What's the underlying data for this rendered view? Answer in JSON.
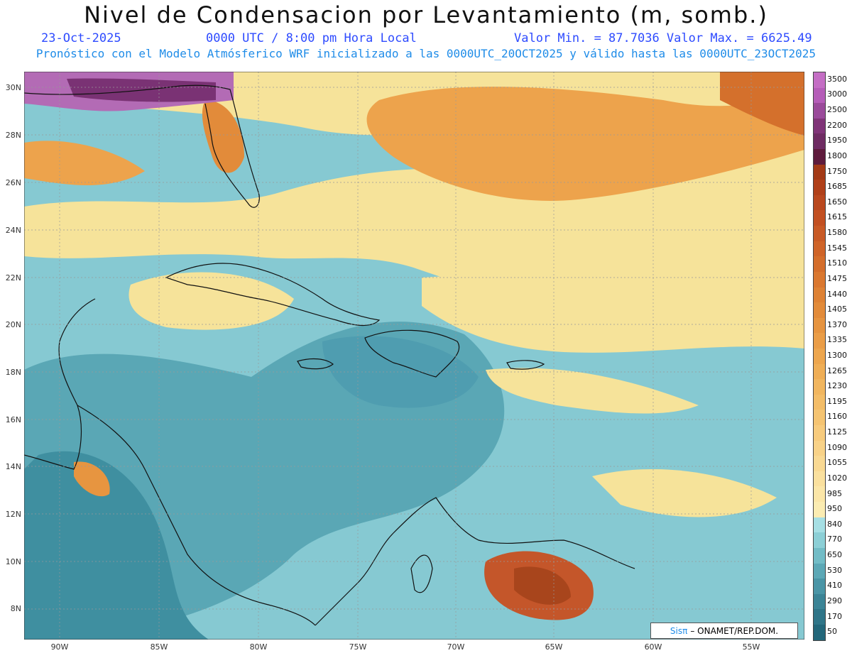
{
  "title": "Nivel de Condensacion por Levantamiento (m, somb.)",
  "date": "23-Oct-2025",
  "time": "0000 UTC / 8:00 pm Hora Local",
  "minmax": "Valor Min. = 87.7036  Valor Max. = 6625.49",
  "subtitle": "Pronóstico con el Modelo Atmósferico WRF inicializado a las 0000UTC_20OCT2025 y válido hasta las  0000UTC_23OCT2025",
  "credit": {
    "logo": "Sisπ",
    "text": "– ONAMET/REP.DOM."
  },
  "lat_labels": [
    "30N",
    "28N",
    "26N",
    "24N",
    "22N",
    "20N",
    "18N",
    "16N",
    "14N",
    "12N",
    "10N",
    "8N"
  ],
  "lon_labels": [
    "90W",
    "85W",
    "80W",
    "75W",
    "70W",
    "65W",
    "60W",
    "55W"
  ],
  "colorbar": {
    "labels": [
      "3500",
      "3000",
      "2500",
      "2200",
      "1950",
      "1800",
      "1750",
      "1685",
      "1650",
      "1615",
      "1580",
      "1545",
      "1510",
      "1475",
      "1440",
      "1405",
      "1370",
      "1335",
      "1300",
      "1265",
      "1230",
      "1195",
      "1160",
      "1125",
      "1090",
      "1055",
      "1020",
      "985",
      "950",
      "840",
      "770",
      "650",
      "530",
      "410",
      "290",
      "170",
      "50"
    ],
    "colors": [
      "#c46ec4",
      "#b55db8",
      "#9a4a9a",
      "#803478",
      "#6e2b62",
      "#5e1b3c",
      "#a33a16",
      "#b04019",
      "#b9481e",
      "#c25022",
      "#c85a26",
      "#cf6429",
      "#d46e2c",
      "#da7830",
      "#de8235",
      "#e28b3a",
      "#e69440",
      "#ea9d47",
      "#eda64e",
      "#efae56",
      "#f1b65f",
      "#f3bd68",
      "#f5c472",
      "#f7cb7d",
      "#f8d288",
      "#f9d993",
      "#fae09e",
      "#fbe6a8",
      "#fbecb2",
      "#a6dfe4",
      "#8ccfd6",
      "#72bcc6",
      "#5ca8b6",
      "#4a95a6",
      "#3b8496",
      "#2f7588",
      "#23677a"
    ]
  },
  "map_colors": {
    "water": "#7fc6cf",
    "deep": "#3f8fa0",
    "yellow": "#f9e49c",
    "orange": "#e79540",
    "brown": "#b5521f",
    "purple": "#8a3f8a"
  }
}
